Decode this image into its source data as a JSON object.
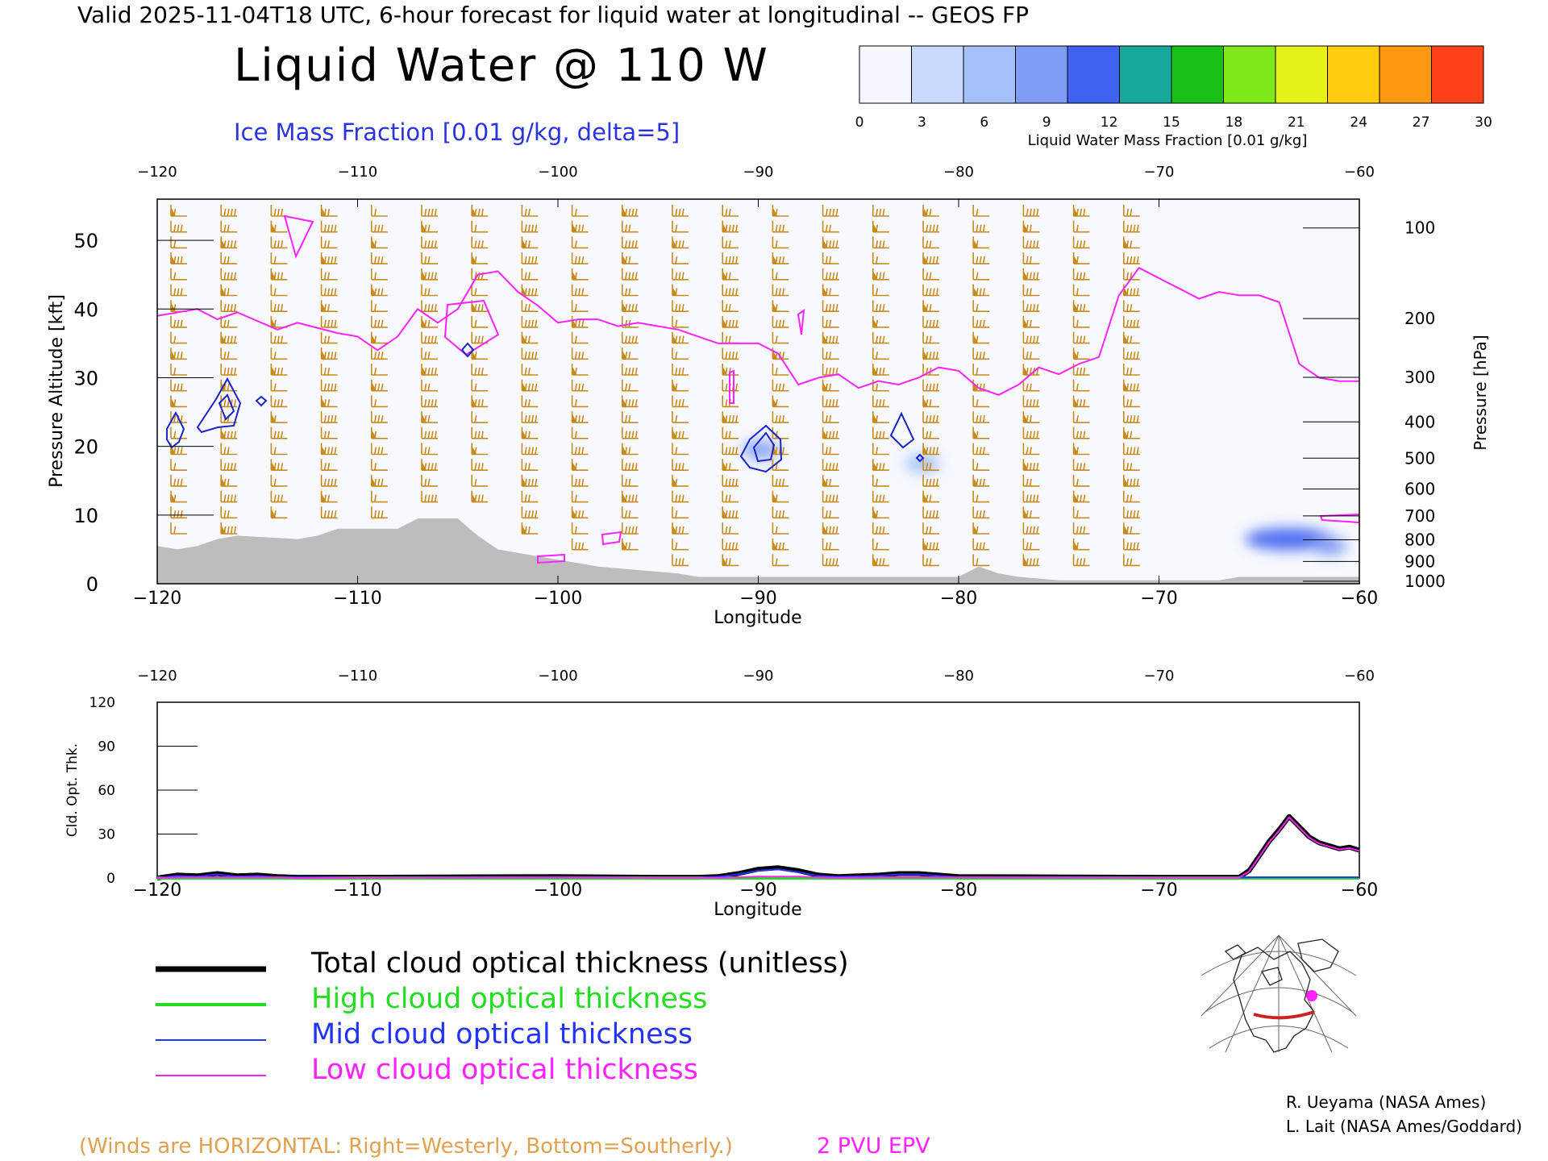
{
  "header": {
    "valid_line": "Valid 2025-11-04T18 UTC, 6-hour forecast for liquid water at longitudinal -- GEOS FP",
    "title": "Liquid Water @ 110 W",
    "subtitle": "Ice Mass Fraction [0.01 g/kg, delta=5]"
  },
  "colorbar": {
    "label": "Liquid Water Mass Fraction [0.01 g/kg]",
    "ticks": [
      "0",
      "3",
      "6",
      "9",
      "12",
      "15",
      "18",
      "21",
      "24",
      "27",
      "30"
    ],
    "colors": [
      "#f4f7fe",
      "#c9dafc",
      "#a3c0f8",
      "#7f9cf5",
      "#3f62f0",
      "#17a89b",
      "#18c018",
      "#7ee81a",
      "#e8f01a",
      "#ffcc10",
      "#ff9a10",
      "#ff4018"
    ]
  },
  "top_panel": {
    "xlabel": "Longitude",
    "ylabel_left": "Pressure Altitude [kft]",
    "ylabel_right": "Pressure [hPa]",
    "x_ticks": [
      "−120",
      "−110",
      "−100",
      "−90",
      "−80",
      "−70",
      "−60"
    ],
    "y_ticks": [
      "0",
      "10",
      "20",
      "30",
      "40",
      "50"
    ],
    "pressure_ticks": [
      "100",
      "200",
      "300",
      "400",
      "500",
      "600",
      "700",
      "800",
      "900",
      "1000"
    ]
  },
  "bottom_panel": {
    "xlabel": "Longitude",
    "ylabel": "Cld. Opt. Thk.",
    "x_ticks": [
      "−120",
      "−110",
      "−100",
      "−90",
      "−80",
      "−70",
      "−60"
    ],
    "y_ticks": [
      "0",
      "30",
      "60",
      "90",
      "120"
    ]
  },
  "legend": {
    "items": [
      {
        "label": "Total cloud optical thickness (unitless)",
        "color": "#000000"
      },
      {
        "label": "High cloud optical thickness",
        "color": "#22dd22"
      },
      {
        "label": "Mid cloud optical thickness",
        "color": "#2233ff"
      },
      {
        "label": "Low cloud optical thickness",
        "color": "#ff22ff"
      }
    ]
  },
  "credits": [
    "R. Ueyama (NASA Ames)",
    "L. Lait (NASA Ames/Goddard)"
  ],
  "footer": {
    "winds_note": "(Winds are HORIZONTAL: Right=Westerly, Bottom=Southerly.)",
    "epv_label": "2 PVU EPV"
  },
  "colors": {
    "wind": "#c88a1a",
    "epv": "#ff22ff",
    "ice": "#1a22cc",
    "terrain": "#bdbdbd",
    "cross_section_line": "#cc2222"
  },
  "chart_data": [
    {
      "type": "heatmap",
      "title": "Liquid Water @ 110 W",
      "xlabel": "Longitude",
      "ylabel": "Pressure Altitude [kft]",
      "xlim": [
        -120,
        -60
      ],
      "ylim": [
        0,
        56
      ],
      "liquid_water_blobs": [
        {
          "lon": -63.5,
          "alt_kft": 6.5,
          "value": 9
        },
        {
          "lon": -61.5,
          "alt_kft": 5.5,
          "value": 6
        },
        {
          "lon": -89.9,
          "alt_kft": 19.5,
          "value": 6
        },
        {
          "lon": -81.8,
          "alt_kft": 17.5,
          "value": 3
        }
      ],
      "terrain_kft": [
        [
          -120,
          5.5
        ],
        [
          -119,
          5
        ],
        [
          -118,
          5.5
        ],
        [
          -117,
          6.5
        ],
        [
          -116,
          7
        ],
        [
          -113,
          6.5
        ],
        [
          -112,
          7
        ],
        [
          -111,
          8
        ],
        [
          -108,
          8
        ],
        [
          -107,
          9.5
        ],
        [
          -105,
          9.5
        ],
        [
          -104,
          7
        ],
        [
          -103,
          5
        ],
        [
          -102,
          4.5
        ],
        [
          -100,
          3.5
        ],
        [
          -99,
          3
        ],
        [
          -98,
          2.5
        ],
        [
          -96,
          2
        ],
        [
          -94,
          1.5
        ],
        [
          -93,
          1
        ],
        [
          -91,
          1
        ],
        [
          -89,
          1
        ],
        [
          -80,
          1
        ],
        [
          -79,
          2.5
        ],
        [
          -78,
          1.5
        ],
        [
          -77,
          1
        ],
        [
          -75,
          0.5
        ],
        [
          -67,
          0.5
        ],
        [
          -66,
          1
        ],
        [
          -60,
          1
        ]
      ],
      "epv_2pvu_alt_kft": [
        [
          -120,
          39
        ],
        [
          -118,
          40
        ],
        [
          -117,
          38.5
        ],
        [
          -116,
          39.5
        ],
        [
          -114,
          37
        ],
        [
          -113,
          38
        ],
        [
          -111,
          36.5
        ],
        [
          -110,
          36
        ],
        [
          -109,
          34
        ],
        [
          -108,
          36
        ],
        [
          -107,
          40
        ],
        [
          -106,
          38
        ],
        [
          -105,
          40
        ],
        [
          -104,
          45
        ],
        [
          -103,
          45.5
        ],
        [
          -102,
          42.5
        ],
        [
          -101,
          40.5
        ],
        [
          -100,
          38
        ],
        [
          -99,
          38.5
        ],
        [
          -98,
          38.5
        ],
        [
          -97,
          37.5
        ],
        [
          -96,
          38
        ],
        [
          -95,
          37.5
        ],
        [
          -94,
          37
        ],
        [
          -93,
          36
        ],
        [
          -92,
          35
        ],
        [
          -91,
          35
        ],
        [
          -90,
          35
        ],
        [
          -89,
          33.5
        ],
        [
          -88,
          29
        ],
        [
          -87,
          30
        ],
        [
          -86,
          30.5
        ],
        [
          -85,
          28.5
        ],
        [
          -84,
          29.5
        ],
        [
          -83,
          29
        ],
        [
          -82,
          30
        ],
        [
          -81,
          31.5
        ],
        [
          -80,
          31
        ],
        [
          -79,
          28.5
        ],
        [
          -78,
          27.5
        ],
        [
          -77,
          29
        ],
        [
          -76,
          31.5
        ],
        [
          -75,
          30.5
        ],
        [
          -74,
          32
        ],
        [
          -73,
          33
        ],
        [
          -72,
          42
        ],
        [
          -71,
          46
        ],
        [
          -70,
          44.5
        ],
        [
          -69,
          43
        ],
        [
          -68,
          41.5
        ],
        [
          -67,
          42.5
        ],
        [
          -66,
          42
        ],
        [
          -65,
          42
        ],
        [
          -64,
          41
        ],
        [
          -63,
          32
        ],
        [
          -62,
          30
        ],
        [
          -61,
          29.5
        ],
        [
          -60,
          29.5
        ]
      ],
      "ice_contours": [
        {
          "lon": -119,
          "alt_kft": 23,
          "level": 5
        },
        {
          "lon": -116.5,
          "alt_kft": 26,
          "level": 5
        },
        {
          "lon": -114.5,
          "alt_kft": 26.5,
          "level": 5
        },
        {
          "lon": -104.5,
          "alt_kft": 34,
          "level": 5
        },
        {
          "lon": -89.9,
          "alt_kft": 19.5,
          "level": 5
        },
        {
          "lon": -89.9,
          "alt_kft": 19.8,
          "level": 10
        },
        {
          "lon": -82.5,
          "alt_kft": 22,
          "level": 5
        }
      ]
    },
    {
      "type": "line",
      "xlabel": "Longitude",
      "ylabel": "Cld. Opt. Thk.",
      "xlim": [
        -120,
        -60
      ],
      "ylim": [
        0,
        120
      ],
      "x": [
        -120,
        -119,
        -118,
        -117,
        -116,
        -115,
        -114,
        -113,
        -110,
        -100,
        -95,
        -93,
        -92,
        -91,
        -90,
        -89,
        -88,
        -87,
        -86,
        -84,
        -83,
        -82,
        -81,
        -80,
        -70,
        -66,
        -65.5,
        -65,
        -64.5,
        -64,
        -63.5,
        -63,
        -62.5,
        -62,
        -61.5,
        -61,
        -60.5,
        -60
      ],
      "series": [
        {
          "name": "Total cloud optical thickness (unitless)",
          "values": [
            0,
            2,
            1.5,
            3,
            1.5,
            2,
            1,
            0.5,
            0.5,
            1,
            0.5,
            0.5,
            1,
            3,
            6,
            7,
            5,
            2,
            1,
            2,
            3,
            3,
            2,
            1,
            0.5,
            0.5,
            5,
            15,
            25,
            33,
            42,
            35,
            28,
            24,
            22,
            20,
            21,
            19
          ]
        },
        {
          "name": "High cloud optical thickness",
          "values": [
            0,
            0,
            0,
            0,
            0,
            0,
            0,
            0,
            0,
            0,
            0,
            0,
            0,
            0,
            0,
            0,
            0,
            0,
            0,
            0,
            0,
            0,
            0,
            0,
            0,
            0,
            0,
            0,
            0,
            0,
            0,
            0,
            0,
            0,
            0,
            0,
            0,
            0
          ]
        },
        {
          "name": "Mid cloud optical thickness",
          "values": [
            0,
            1.5,
            1,
            2.5,
            1,
            1.5,
            0.5,
            0.5,
            0.3,
            0.5,
            0.3,
            0.3,
            0.8,
            2.5,
            5,
            6,
            4,
            1.5,
            0.8,
            1.5,
            2.5,
            2.5,
            1.5,
            0.5,
            0.3,
            0.3,
            0.5,
            0.5,
            0.5,
            0.5,
            0.5,
            0.5,
            0.5,
            0.5,
            0.5,
            0.5,
            0.5,
            0.5
          ]
        },
        {
          "name": "Low cloud optical thickness",
          "values": [
            0,
            0.5,
            0.5,
            0.5,
            0.5,
            0.5,
            0.5,
            0,
            0.2,
            0.5,
            0.2,
            0.2,
            0.2,
            0.5,
            1,
            1,
            1,
            0.5,
            0.2,
            0.5,
            0.5,
            0.5,
            0.5,
            0.5,
            0.2,
            0.2,
            4.5,
            14.5,
            24.5,
            32.5,
            41.5,
            34.5,
            27.5,
            23.5,
            21.5,
            19.5,
            20.5,
            18.5
          ]
        }
      ]
    }
  ]
}
